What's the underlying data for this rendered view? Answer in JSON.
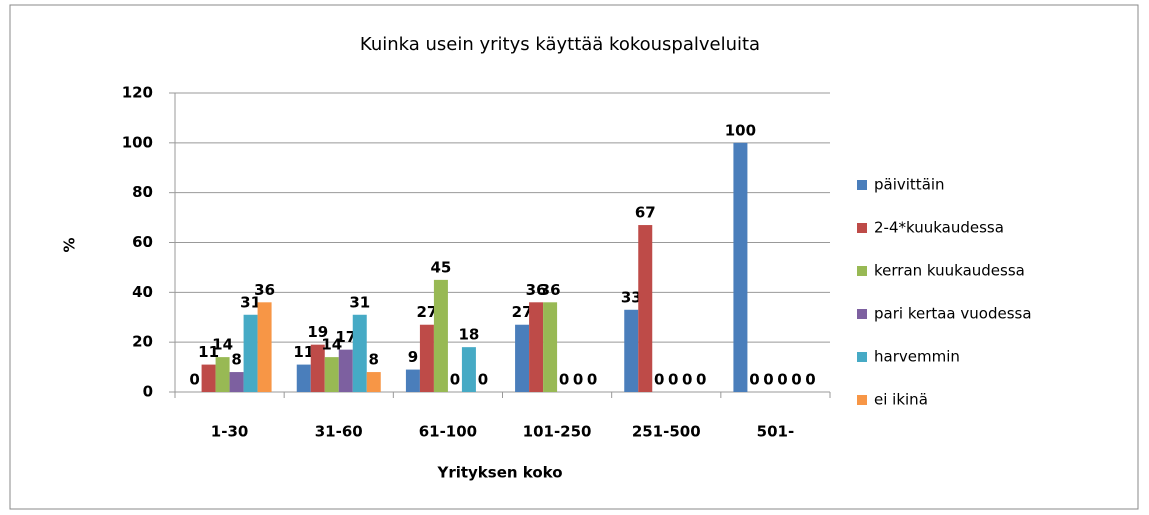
{
  "chart_data": {
    "type": "bar",
    "title": "Kuinka usein yritys käyttää kokouspalveluita",
    "xlabel": "Yrityksen koko",
    "ylabel": "%",
    "categories": [
      "1-30",
      "31-60",
      "61-100",
      "101-250",
      "251-500",
      "501-"
    ],
    "series": [
      {
        "name": "päivittäin",
        "color": "#4a7ebb",
        "values": [
          0,
          11,
          9,
          27,
          33,
          100
        ]
      },
      {
        "name": "2-4*kuukaudessa",
        "color": "#be4b48",
        "values": [
          11,
          19,
          27,
          36,
          67,
          0
        ]
      },
      {
        "name": "kerran kuukaudessa",
        "color": "#98b954",
        "values": [
          14,
          14,
          45,
          36,
          0,
          0
        ]
      },
      {
        "name": "pari kertaa vuodessa",
        "color": "#7d60a0",
        "values": [
          8,
          17,
          0,
          0,
          0,
          0
        ]
      },
      {
        "name": "harvemmin",
        "color": "#46aac5",
        "values": [
          31,
          31,
          18,
          0,
          0,
          0
        ]
      },
      {
        "name": "ei ikinä",
        "color": "#f79646",
        "values": [
          36,
          8,
          0,
          0,
          0,
          0
        ]
      }
    ],
    "ylim": [
      0,
      120
    ],
    "yticks": [
      0,
      20,
      40,
      60,
      80,
      100,
      120
    ],
    "grid": true,
    "legend": "right"
  }
}
